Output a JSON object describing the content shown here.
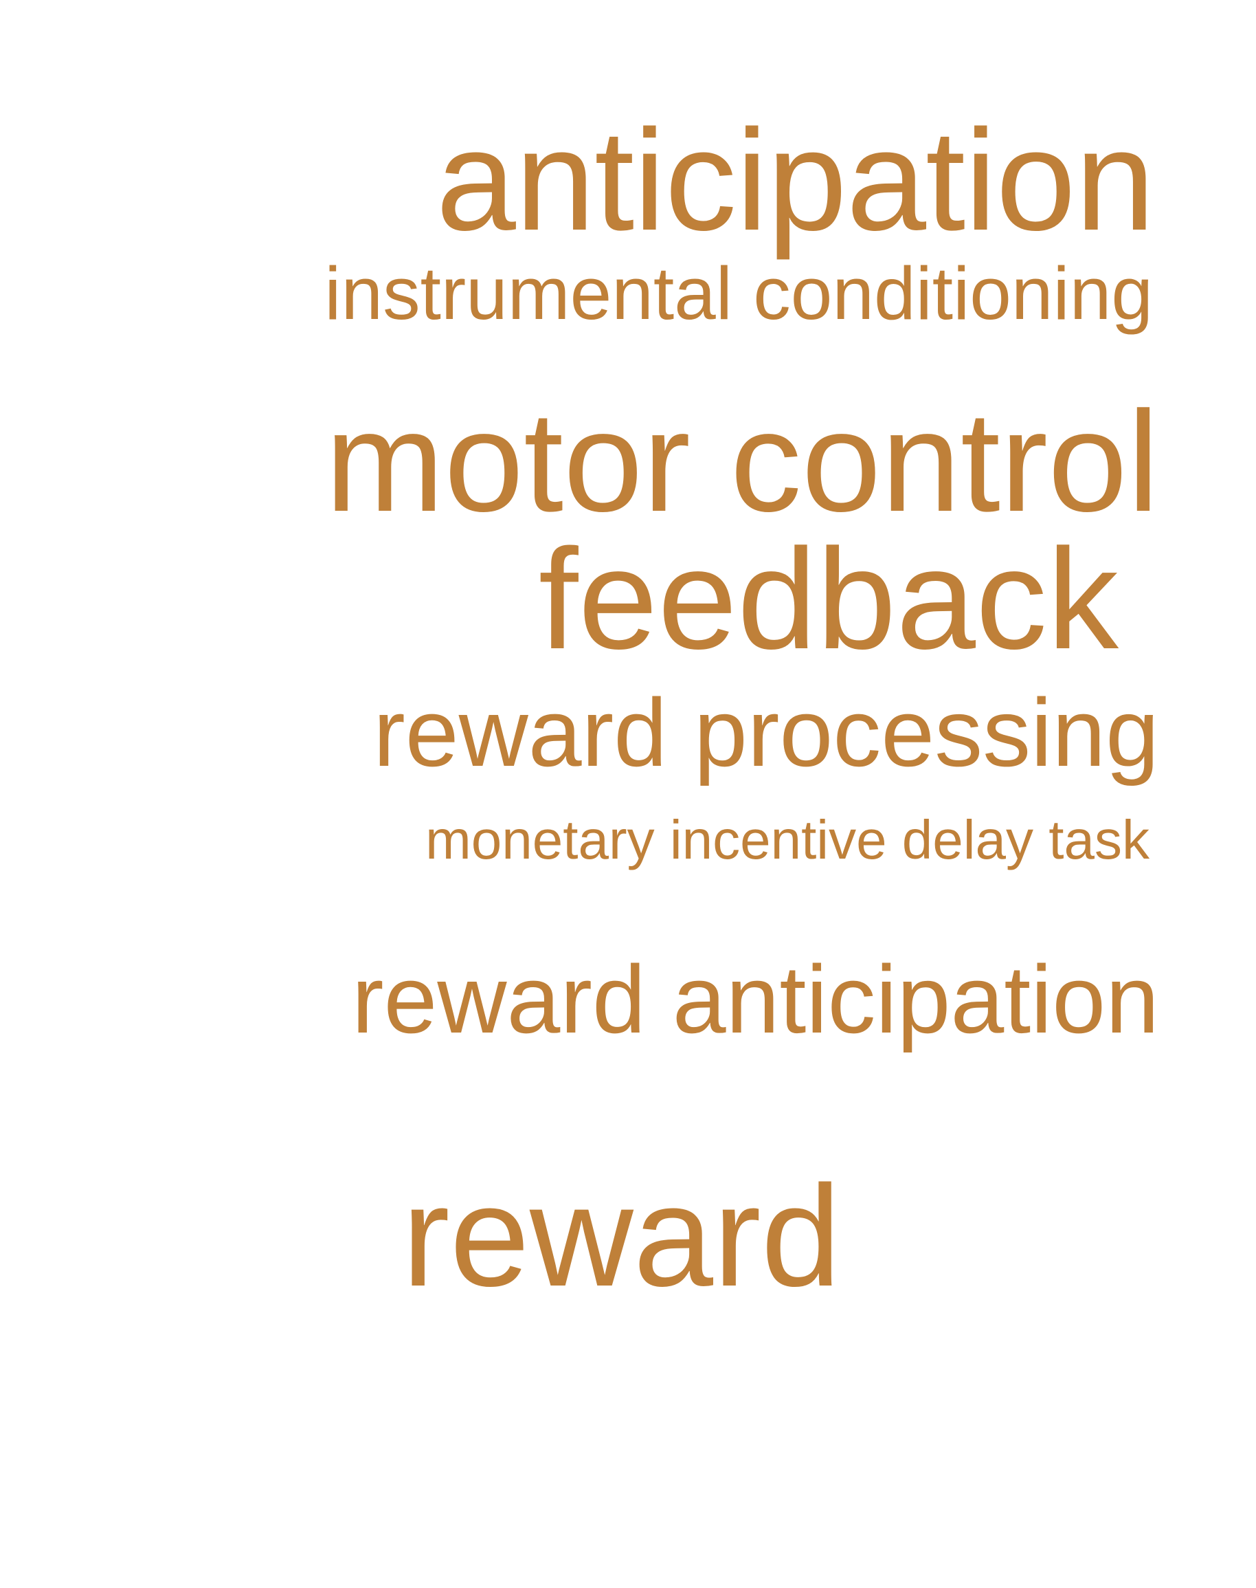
{
  "terms": {
    "anticipation": "anticipation",
    "instrumental_conditioning": "instrumental conditioning",
    "motor_control": "motor control",
    "feedback": "feedback",
    "reward_processing": "reward processing",
    "monetary_incentive_delay_task": "monetary incentive delay task",
    "reward_anticipation": "reward anticipation",
    "reward": "reward"
  },
  "colors": {
    "text": "#bf8039",
    "background": "#ffffff"
  }
}
